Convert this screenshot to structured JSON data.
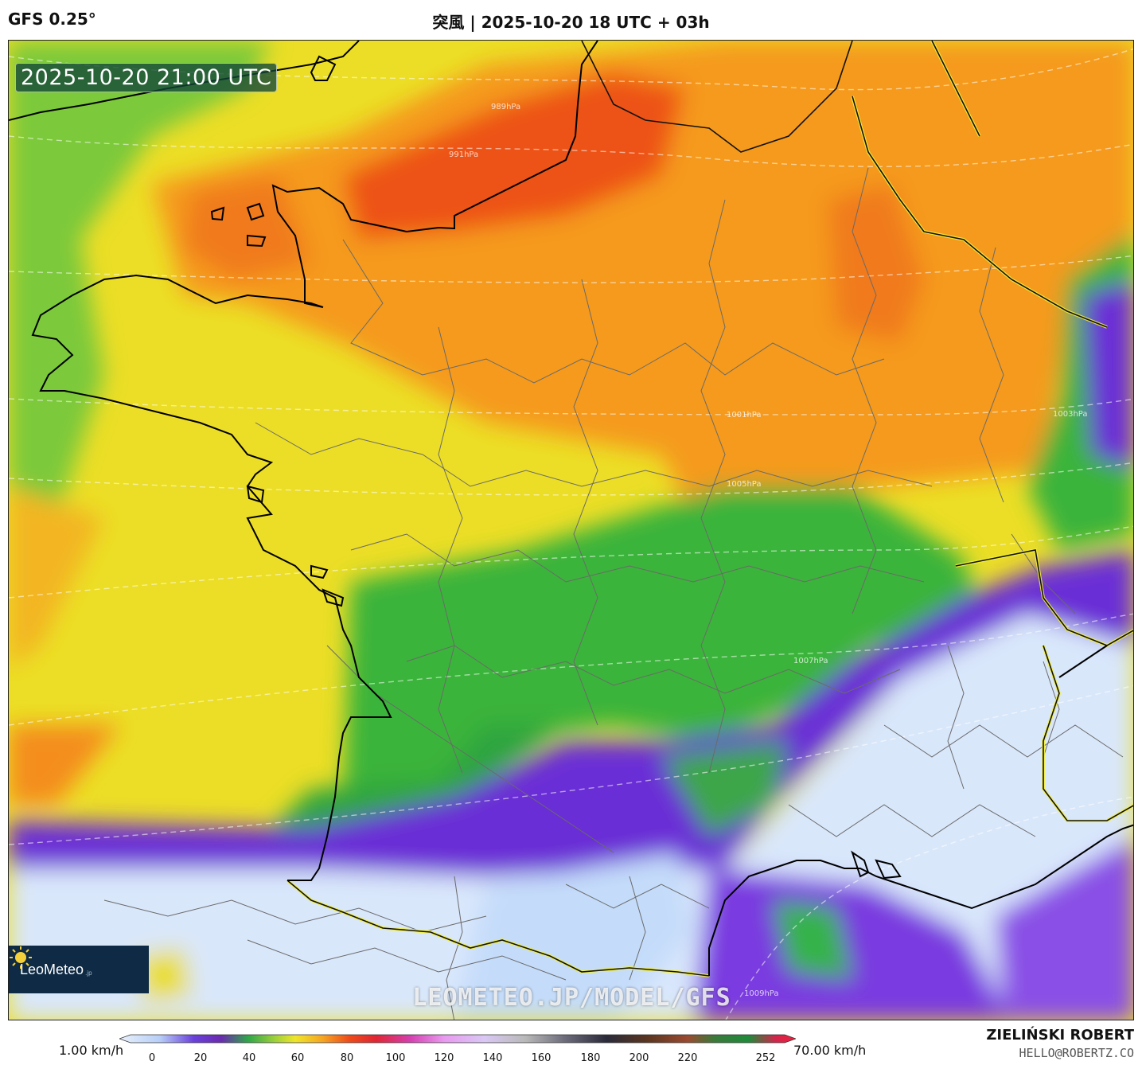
{
  "header": {
    "model": "GFS 0.25°",
    "title": "突風 | 2025-10-20 18 UTC + 03h"
  },
  "map": {
    "timestamp": "2025-10-20 21:00 UTC",
    "watermark": "LEOMETEO.JP/MODEL/GFS",
    "isobar_labels": [
      "989hPa",
      "991hPa",
      "1001hPa",
      "1003hPa",
      "1005hPa",
      "1007hPa",
      "1009hPa"
    ]
  },
  "logo": {
    "name": "LeoMeteo",
    "suffix": ".jp"
  },
  "legend": {
    "min_label": "1.00 km/h",
    "max_label": "70.00 km/h",
    "ticks": [
      "0",
      "20",
      "40",
      "60",
      "80",
      "100",
      "120",
      "140",
      "160",
      "180",
      "200",
      "220",
      "252"
    ]
  },
  "credits": {
    "author": "ZIELIŃSKI ROBERT",
    "email": "HELLO@ROBERTZ.CO"
  },
  "colors": {
    "sea_light": "#d6e6fb",
    "purple": "#6a2bd6",
    "green": "#2fb43e",
    "yellow": "#f0e424",
    "orange": "#f79a1c",
    "red": "#ec4a16"
  }
}
